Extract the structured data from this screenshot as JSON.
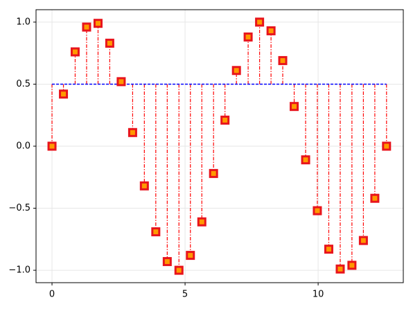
{
  "chart_data": {
    "type": "stem",
    "x": [
      0,
      0.43,
      0.87,
      1.3,
      1.73,
      2.17,
      2.6,
      3.03,
      3.47,
      3.9,
      4.33,
      4.77,
      5.2,
      5.63,
      6.07,
      6.5,
      6.93,
      7.37,
      7.8,
      8.23,
      8.67,
      9.1,
      9.53,
      9.97,
      10.4,
      10.83,
      11.27,
      11.7,
      12.13,
      12.57
    ],
    "values": [
      0,
      0.42,
      0.76,
      0.96,
      0.99,
      0.83,
      0.52,
      0.11,
      -0.32,
      -0.69,
      -0.93,
      -1.0,
      -0.88,
      -0.61,
      -0.22,
      0.21,
      0.61,
      0.88,
      1.0,
      0.93,
      0.69,
      0.32,
      -0.11,
      -0.52,
      -0.83,
      -0.99,
      -0.96,
      -0.76,
      -0.42,
      0
    ],
    "baseline": 0.5,
    "marker_color": "#ff9900",
    "marker_stroke": "#e8141c",
    "stem_color": "#ff0000",
    "baseline_color": "#0000ff",
    "xlim": [
      -0.6,
      13.2
    ],
    "ylim": [
      -1.1,
      1.1
    ],
    "xticks": [
      0,
      5,
      10
    ],
    "yticks": [
      {
        "value": 1,
        "label": "1.0"
      },
      {
        "value": 0.5,
        "label": "0.5"
      },
      {
        "value": 0,
        "label": "0.0"
      },
      {
        "value": -0.5,
        "label": "−0.5"
      },
      {
        "value": -1,
        "label": "−1.0"
      }
    ],
    "grid": true
  }
}
